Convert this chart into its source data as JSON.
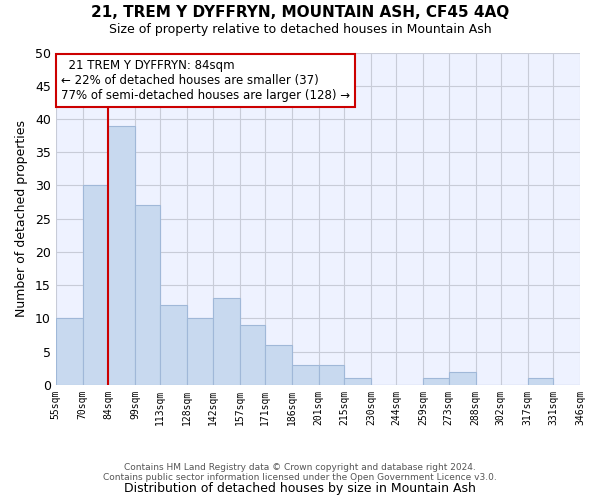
{
  "title": "21, TREM Y DYFFRYN, MOUNTAIN ASH, CF45 4AQ",
  "subtitle": "Size of property relative to detached houses in Mountain Ash",
  "xlabel": "Distribution of detached houses by size in Mountain Ash",
  "ylabel": "Number of detached properties",
  "bin_edges": [
    55,
    70,
    84,
    99,
    113,
    128,
    142,
    157,
    171,
    186,
    201,
    215,
    230,
    244,
    259,
    273,
    288,
    302,
    317,
    331,
    346
  ],
  "bar_heights": [
    10,
    30,
    39,
    27,
    12,
    10,
    13,
    9,
    6,
    3,
    3,
    1,
    0,
    0,
    1,
    2,
    0,
    0,
    1,
    0
  ],
  "bar_color": "#c8d9ef",
  "bar_edge_color": "#a0b8d8",
  "plot_bg_color": "#eef2ff",
  "grid_color": "#c8ccd8",
  "property_line_x": 84,
  "property_line_color": "#cc0000",
  "annotation_title": "21 TREM Y DYFFRYN: 84sqm",
  "annotation_line1": "← 22% of detached houses are smaller (37)",
  "annotation_line2": "77% of semi-detached houses are larger (128) →",
  "annotation_box_color": "white",
  "annotation_box_edge_color": "#cc0000",
  "ylim": [
    0,
    50
  ],
  "yticks": [
    0,
    5,
    10,
    15,
    20,
    25,
    30,
    35,
    40,
    45,
    50
  ],
  "footer_line1": "Contains HM Land Registry data © Crown copyright and database right 2024.",
  "footer_line2": "Contains public sector information licensed under the Open Government Licence v3.0.",
  "tick_labels": [
    "55sqm",
    "70sqm",
    "84sqm",
    "99sqm",
    "113sqm",
    "128sqm",
    "142sqm",
    "157sqm",
    "171sqm",
    "186sqm",
    "201sqm",
    "215sqm",
    "230sqm",
    "244sqm",
    "259sqm",
    "273sqm",
    "288sqm",
    "302sqm",
    "317sqm",
    "331sqm",
    "346sqm"
  ]
}
